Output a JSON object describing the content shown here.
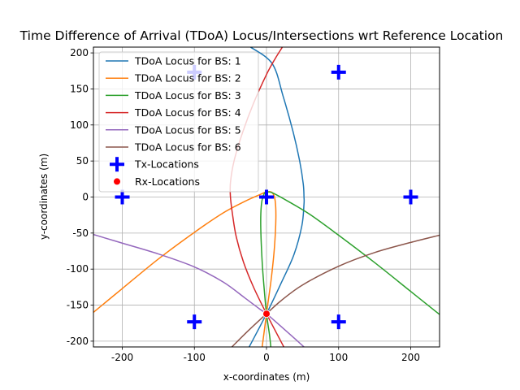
{
  "chart_data": {
    "type": "line",
    "title": "Time Difference of Arrival (TDoA) Locus/Intersections wrt Reference Location",
    "xlabel": "x-coordinates (m)",
    "ylabel": "y-coordinates (m)",
    "xlim": [
      -240,
      240
    ],
    "ylim": [
      -208,
      208
    ],
    "xticks": [
      -200,
      -100,
      0,
      100,
      200
    ],
    "yticks": [
      -200,
      -150,
      -100,
      -50,
      0,
      50,
      100,
      150,
      200
    ],
    "grid": true,
    "legend_position": "top-left",
    "reference_tx": [
      0,
      0
    ],
    "rx_point": [
      0,
      -162
    ],
    "series": [
      {
        "name": "TDoA Locus for BS: 1",
        "color": "#1f77b4",
        "tx": [
          -100,
          173.2
        ],
        "points": [
          [
            -24,
            -208
          ],
          [
            0,
            -162
          ],
          [
            20,
            -120
          ],
          [
            38,
            -80
          ],
          [
            49,
            -40
          ],
          [
            52,
            -10
          ],
          [
            52,
            0
          ],
          [
            51,
            18
          ],
          [
            46,
            50
          ],
          [
            37,
            90
          ],
          [
            23,
            140
          ],
          [
            8,
            185
          ],
          [
            -22,
            208
          ]
        ]
      },
      {
        "name": "TDoA Locus for BS: 2",
        "color": "#ff7f0e",
        "tx": [
          100,
          -173.2
        ],
        "points": [
          [
            -240,
            -160
          ],
          [
            -200,
            -127
          ],
          [
            -150,
            -86
          ],
          [
            -100,
            -49
          ],
          [
            -60,
            -22
          ],
          [
            -30,
            -6
          ],
          [
            -10,
            3
          ],
          [
            0,
            7
          ],
          [
            8,
            6
          ],
          [
            12,
            -5
          ],
          [
            13,
            -30
          ],
          [
            11,
            -70
          ],
          [
            7,
            -110
          ],
          [
            3,
            -140
          ],
          [
            0,
            -162
          ],
          [
            -3,
            -185
          ],
          [
            -6,
            -208
          ]
        ]
      },
      {
        "name": "TDoA Locus for BS: 3",
        "color": "#2ca02c",
        "tx": [
          100,
          173.2
        ],
        "points": [
          [
            240,
            -163
          ],
          [
            200,
            -131
          ],
          [
            150,
            -91
          ],
          [
            100,
            -53
          ],
          [
            60,
            -24
          ],
          [
            30,
            -6
          ],
          [
            10,
            5
          ],
          [
            3,
            7
          ],
          [
            -3,
            5
          ],
          [
            -7,
            -10
          ],
          [
            -8,
            -40
          ],
          [
            -6,
            -90
          ],
          [
            -3,
            -130
          ],
          [
            0,
            -162
          ],
          [
            4,
            -190
          ],
          [
            6,
            -208
          ]
        ]
      },
      {
        "name": "TDoA Locus for BS: 4",
        "color": "#d62728",
        "tx": [
          -200,
          0
        ],
        "points": [
          [
            24,
            -208
          ],
          [
            0,
            -162
          ],
          [
            -18,
            -125
          ],
          [
            -32,
            -90
          ],
          [
            -42,
            -55
          ],
          [
            -47,
            -25
          ],
          [
            -50,
            0
          ],
          [
            -50,
            20
          ],
          [
            -45,
            50
          ],
          [
            -33,
            90
          ],
          [
            -18,
            130
          ],
          [
            0,
            170
          ],
          [
            12,
            192
          ],
          [
            22,
            208
          ]
        ]
      },
      {
        "name": "TDoA Locus for BS: 5",
        "color": "#9467bd",
        "tx": [
          -100,
          -173.2
        ],
        "points": [
          [
            -240,
            -52
          ],
          [
            -200,
            -64
          ],
          [
            -150,
            -79
          ],
          [
            -100,
            -97
          ],
          [
            -60,
            -118
          ],
          [
            -30,
            -140
          ],
          [
            -10,
            -155
          ],
          [
            0,
            -162
          ],
          [
            15,
            -175
          ],
          [
            32,
            -190
          ],
          [
            52,
            -208
          ]
        ]
      },
      {
        "name": "TDoA Locus for BS: 6",
        "color": "#8c564b",
        "tx": [
          200,
          0
        ],
        "points": [
          [
            -48,
            -208
          ],
          [
            -30,
            -190
          ],
          [
            -12,
            -173
          ],
          [
            0,
            -162
          ],
          [
            20,
            -144
          ],
          [
            50,
            -122
          ],
          [
            100,
            -96
          ],
          [
            150,
            -77
          ],
          [
            200,
            -63
          ],
          [
            240,
            -53
          ]
        ]
      }
    ],
    "legend": [
      {
        "label": "TDoA Locus for BS: 1",
        "kind": "line",
        "color": "#1f77b4"
      },
      {
        "label": "TDoA Locus for BS: 2",
        "kind": "line",
        "color": "#ff7f0e"
      },
      {
        "label": "TDoA Locus for BS: 3",
        "kind": "line",
        "color": "#2ca02c"
      },
      {
        "label": "TDoA Locus for BS: 4",
        "kind": "line",
        "color": "#d62728"
      },
      {
        "label": "TDoA Locus for BS: 5",
        "kind": "line",
        "color": "#9467bd"
      },
      {
        "label": "TDoA Locus for BS: 6",
        "kind": "line",
        "color": "#8c564b"
      },
      {
        "label": "Tx-Locations",
        "kind": "plus",
        "color": "#0000ff"
      },
      {
        "label": "Rx-Locations",
        "kind": "dot",
        "color": "#ff0000"
      }
    ]
  }
}
